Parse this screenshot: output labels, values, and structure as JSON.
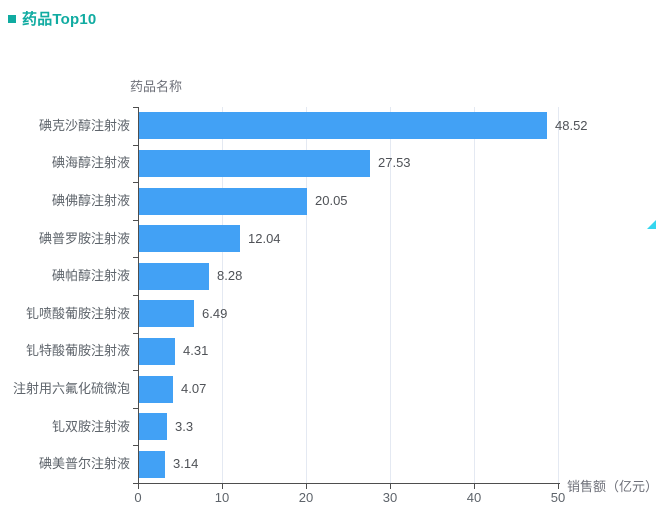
{
  "header": {
    "title": "药品Top10"
  },
  "colors": {
    "title_teal": "#10aba1",
    "bar_blue": "#42a1f5",
    "axis_line": "#4e4e4e",
    "gridline": "#e4e9f2",
    "corner_cyan": "#35d6ef"
  },
  "chart_data": {
    "type": "bar",
    "orientation": "horizontal",
    "title": "药品Top10",
    "xlabel": "销售额（亿元）",
    "ylabel": "药品名称",
    "categories": [
      "碘克沙醇注射液",
      "碘海醇注射液",
      "碘佛醇注射液",
      "碘普罗胺注射液",
      "碘帕醇注射液",
      "钆喷酸葡胺注射液",
      "钆特酸葡胺注射液",
      "注射用六氟化硫微泡",
      "钆双胺注射液",
      "碘美普尔注射液"
    ],
    "values": [
      48.52,
      27.53,
      20.05,
      12.04,
      8.28,
      6.49,
      4.31,
      4.07,
      3.3,
      3.14
    ],
    "value_labels": [
      "48.52",
      "27.53",
      "20.05",
      "12.04",
      "8.28",
      "6.49",
      "4.31",
      "4.07",
      "3.3",
      "3.14"
    ],
    "xlim": [
      0,
      50
    ],
    "xticks": [
      0,
      10,
      20,
      30,
      40,
      50
    ],
    "grid": true,
    "legend": "none",
    "value_labels_position": "right-of-bar"
  }
}
